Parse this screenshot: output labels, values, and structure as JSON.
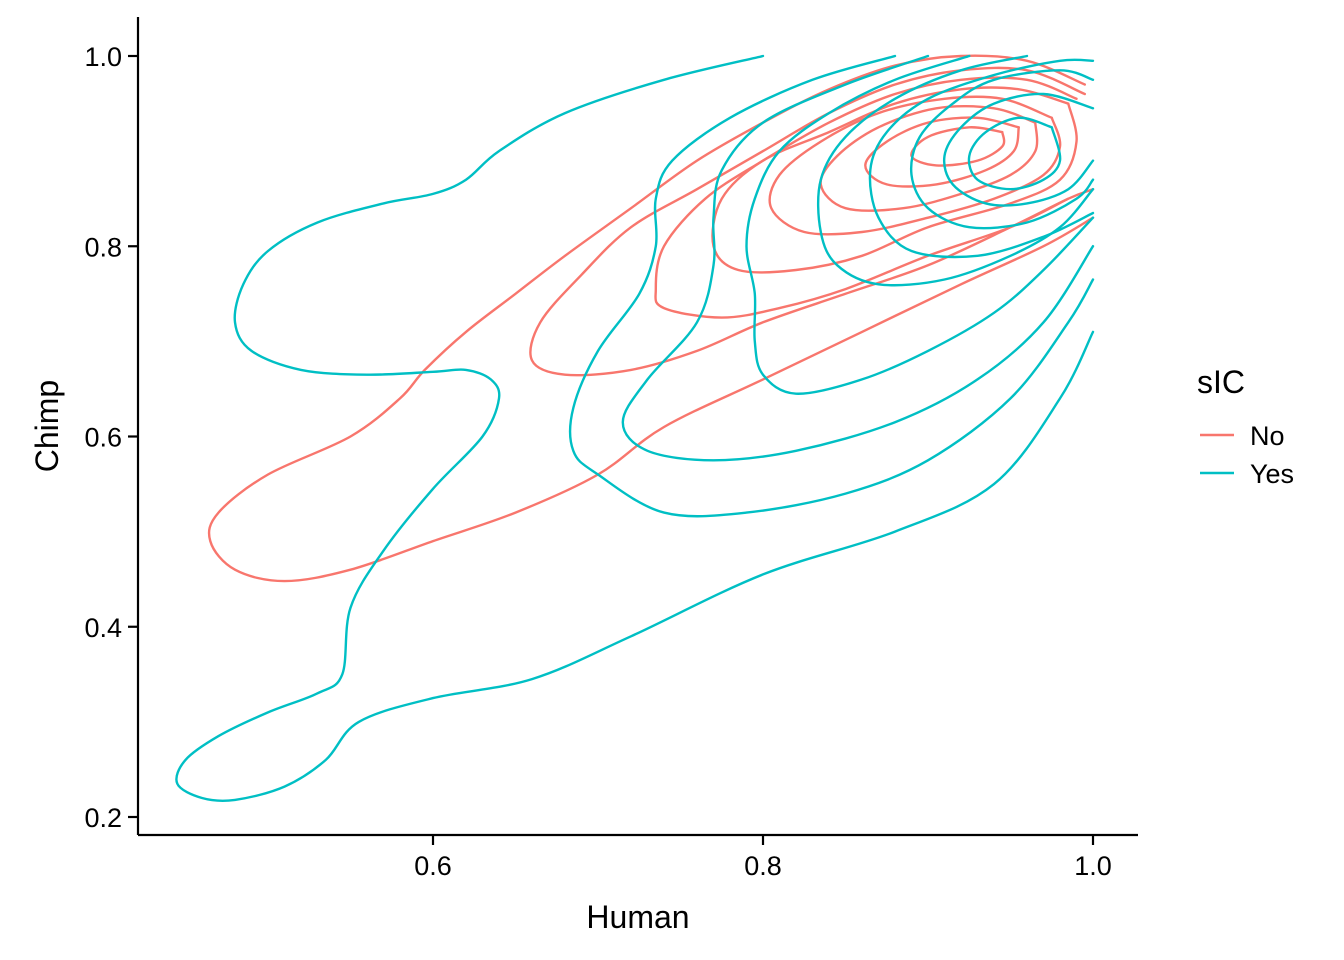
{
  "chart_data": {
    "type": "density_contour",
    "xlabel": "Human",
    "ylabel": "Chimp",
    "xlim": [
      0.43,
      1.03
    ],
    "ylim": [
      0.185,
      1.04
    ],
    "xticks": [
      0.6,
      0.8,
      1.0
    ],
    "xtick_labels": [
      "0.6",
      "0.8",
      "1.0"
    ],
    "yticks": [
      0.2,
      0.4,
      0.6,
      0.8,
      1.0
    ],
    "ytick_labels": [
      "0.2",
      "0.4",
      "0.6",
      "0.8",
      "1.0"
    ],
    "grid": false,
    "legend": {
      "title": "sIC",
      "position": "right",
      "entries": [
        {
          "label": "No",
          "color": "#F8766D"
        },
        {
          "label": "Yes",
          "color": "#00BFC4"
        }
      ]
    },
    "series": [
      {
        "name": "No",
        "color": "#F8766D",
        "contours": [
          [
            [
              0.995,
              0.97
            ],
            [
              0.96,
              0.995
            ],
            [
              0.92,
              1.0
            ],
            [
              0.88,
              0.99
            ],
            [
              0.84,
              0.965
            ],
            [
              0.8,
              0.93
            ],
            [
              0.76,
              0.89
            ],
            [
              0.72,
              0.84
            ],
            [
              0.68,
              0.79
            ],
            [
              0.65,
              0.75
            ],
            [
              0.62,
              0.71
            ],
            [
              0.595,
              0.67
            ],
            [
              0.58,
              0.64
            ],
            [
              0.55,
              0.6
            ],
            [
              0.5,
              0.56
            ],
            [
              0.47,
              0.52
            ],
            [
              0.465,
              0.49
            ],
            [
              0.48,
              0.46
            ],
            [
              0.51,
              0.448
            ],
            [
              0.55,
              0.46
            ],
            [
              0.6,
              0.49
            ],
            [
              0.65,
              0.52
            ],
            [
              0.7,
              0.56
            ],
            [
              0.74,
              0.61
            ],
            [
              0.8,
              0.66
            ],
            [
              0.86,
              0.71
            ],
            [
              0.92,
              0.76
            ],
            [
              0.97,
              0.8
            ],
            [
              1.0,
              0.83
            ]
          ],
          [
            [
              0.995,
              0.96
            ],
            [
              0.96,
              0.985
            ],
            [
              0.92,
              0.985
            ],
            [
              0.88,
              0.97
            ],
            [
              0.84,
              0.94
            ],
            [
              0.8,
              0.9
            ],
            [
              0.76,
              0.86
            ],
            [
              0.72,
              0.82
            ],
            [
              0.69,
              0.77
            ],
            [
              0.665,
              0.72
            ],
            [
              0.66,
              0.68
            ],
            [
              0.68,
              0.665
            ],
            [
              0.72,
              0.67
            ],
            [
              0.76,
              0.69
            ],
            [
              0.8,
              0.72
            ],
            [
              0.85,
              0.75
            ],
            [
              0.9,
              0.78
            ],
            [
              0.95,
              0.82
            ],
            [
              0.985,
              0.85
            ],
            [
              1.0,
              0.86
            ]
          ],
          [
            [
              0.99,
              0.955
            ],
            [
              0.96,
              0.975
            ],
            [
              0.92,
              0.975
            ],
            [
              0.88,
              0.96
            ],
            [
              0.84,
              0.93
            ],
            [
              0.8,
              0.89
            ],
            [
              0.765,
              0.85
            ],
            [
              0.74,
              0.8
            ],
            [
              0.735,
              0.755
            ],
            [
              0.74,
              0.735
            ],
            [
              0.775,
              0.725
            ],
            [
              0.81,
              0.735
            ],
            [
              0.85,
              0.755
            ],
            [
              0.9,
              0.79
            ],
            [
              0.95,
              0.82
            ],
            [
              0.985,
              0.85
            ]
          ],
          [
            [
              0.985,
              0.95
            ],
            [
              0.955,
              0.965
            ],
            [
              0.92,
              0.965
            ],
            [
              0.88,
              0.95
            ],
            [
              0.84,
              0.92
            ],
            [
              0.8,
              0.89
            ],
            [
              0.775,
              0.85
            ],
            [
              0.77,
              0.8
            ],
            [
              0.785,
              0.775
            ],
            [
              0.82,
              0.775
            ],
            [
              0.86,
              0.79
            ],
            [
              0.9,
              0.82
            ],
            [
              0.95,
              0.845
            ],
            [
              0.98,
              0.87
            ],
            [
              0.99,
              0.91
            ],
            [
              0.985,
              0.95
            ]
          ],
          [
            [
              0.975,
              0.935
            ],
            [
              0.945,
              0.955
            ],
            [
              0.91,
              0.955
            ],
            [
              0.87,
              0.94
            ],
            [
              0.835,
              0.91
            ],
            [
              0.81,
              0.875
            ],
            [
              0.805,
              0.84
            ],
            [
              0.825,
              0.815
            ],
            [
              0.86,
              0.815
            ],
            [
              0.9,
              0.83
            ],
            [
              0.94,
              0.85
            ],
            [
              0.97,
              0.875
            ],
            [
              0.98,
              0.905
            ],
            [
              0.975,
              0.935
            ]
          ],
          [
            [
              0.965,
              0.93
            ],
            [
              0.94,
              0.945
            ],
            [
              0.905,
              0.945
            ],
            [
              0.87,
              0.925
            ],
            [
              0.845,
              0.895
            ],
            [
              0.835,
              0.865
            ],
            [
              0.85,
              0.84
            ],
            [
              0.885,
              0.84
            ],
            [
              0.92,
              0.855
            ],
            [
              0.95,
              0.875
            ],
            [
              0.965,
              0.9
            ],
            [
              0.965,
              0.93
            ]
          ],
          [
            [
              0.955,
              0.925
            ],
            [
              0.93,
              0.935
            ],
            [
              0.9,
              0.93
            ],
            [
              0.875,
              0.91
            ],
            [
              0.862,
              0.885
            ],
            [
              0.875,
              0.865
            ],
            [
              0.905,
              0.865
            ],
            [
              0.935,
              0.88
            ],
            [
              0.952,
              0.9
            ],
            [
              0.955,
              0.925
            ]
          ],
          [
            [
              0.945,
              0.92
            ],
            [
              0.925,
              0.925
            ],
            [
              0.9,
              0.915
            ],
            [
              0.89,
              0.895
            ],
            [
              0.905,
              0.885
            ],
            [
              0.93,
              0.89
            ],
            [
              0.945,
              0.905
            ],
            [
              0.945,
              0.92
            ]
          ]
        ]
      },
      {
        "name": "Yes",
        "color": "#00BFC4",
        "contours": [
          [
            [
              0.8,
              1.0
            ],
            [
              0.74,
              0.975
            ],
            [
              0.68,
              0.94
            ],
            [
              0.64,
              0.9
            ],
            [
              0.62,
              0.87
            ],
            [
              0.6,
              0.855
            ],
            [
              0.57,
              0.845
            ],
            [
              0.53,
              0.825
            ],
            [
              0.5,
              0.795
            ],
            [
              0.485,
              0.76
            ],
            [
              0.48,
              0.72
            ],
            [
              0.49,
              0.69
            ],
            [
              0.52,
              0.67
            ],
            [
              0.56,
              0.665
            ],
            [
              0.6,
              0.668
            ],
            [
              0.62,
              0.67
            ],
            [
              0.635,
              0.66
            ],
            [
              0.64,
              0.64
            ],
            [
              0.63,
              0.6
            ],
            [
              0.6,
              0.545
            ],
            [
              0.57,
              0.48
            ],
            [
              0.55,
              0.42
            ],
            [
              0.545,
              0.35
            ],
            [
              0.53,
              0.33
            ],
            [
              0.5,
              0.31
            ],
            [
              0.47,
              0.285
            ],
            [
              0.45,
              0.26
            ],
            [
              0.445,
              0.235
            ],
            [
              0.46,
              0.22
            ],
            [
              0.48,
              0.218
            ],
            [
              0.51,
              0.232
            ],
            [
              0.535,
              0.26
            ],
            [
              0.555,
              0.3
            ],
            [
              0.6,
              0.325
            ],
            [
              0.66,
              0.345
            ],
            [
              0.72,
              0.39
            ],
            [
              0.8,
              0.455
            ],
            [
              0.88,
              0.5
            ],
            [
              0.94,
              0.55
            ],
            [
              0.98,
              0.64
            ],
            [
              1.0,
              0.71
            ]
          ],
          [
            [
              0.88,
              1.0
            ],
            [
              0.83,
              0.975
            ],
            [
              0.78,
              0.935
            ],
            [
              0.745,
              0.89
            ],
            [
              0.735,
              0.85
            ],
            [
              0.735,
              0.8
            ],
            [
              0.725,
              0.75
            ],
            [
              0.7,
              0.69
            ],
            [
              0.685,
              0.63
            ],
            [
              0.685,
              0.585
            ],
            [
              0.7,
              0.56
            ],
            [
              0.74,
              0.52
            ],
            [
              0.79,
              0.52
            ],
            [
              0.85,
              0.54
            ],
            [
              0.9,
              0.575
            ],
            [
              0.95,
              0.64
            ],
            [
              0.985,
              0.72
            ],
            [
              1.0,
              0.765
            ]
          ],
          [
            [
              0.9,
              1.0
            ],
            [
              0.85,
              0.97
            ],
            [
              0.8,
              0.93
            ],
            [
              0.775,
              0.88
            ],
            [
              0.77,
              0.83
            ],
            [
              0.77,
              0.78
            ],
            [
              0.76,
              0.72
            ],
            [
              0.73,
              0.66
            ],
            [
              0.715,
              0.615
            ],
            [
              0.73,
              0.585
            ],
            [
              0.77,
              0.575
            ],
            [
              0.82,
              0.585
            ],
            [
              0.88,
              0.615
            ],
            [
              0.93,
              0.66
            ],
            [
              0.97,
              0.72
            ],
            [
              1.0,
              0.8
            ]
          ],
          [
            [
              0.925,
              1.0
            ],
            [
              0.88,
              0.975
            ],
            [
              0.84,
              0.94
            ],
            [
              0.81,
              0.9
            ],
            [
              0.795,
              0.85
            ],
            [
              0.79,
              0.8
            ],
            [
              0.795,
              0.75
            ],
            [
              0.795,
              0.7
            ],
            [
              0.8,
              0.665
            ],
            [
              0.82,
              0.645
            ],
            [
              0.86,
              0.66
            ],
            [
              0.9,
              0.69
            ],
            [
              0.94,
              0.73
            ],
            [
              0.97,
              0.775
            ],
            [
              1.0,
              0.83
            ]
          ],
          [
            [
              0.96,
              1.0
            ],
            [
              0.92,
              0.985
            ],
            [
              0.88,
              0.955
            ],
            [
              0.85,
              0.915
            ],
            [
              0.835,
              0.87
            ],
            [
              0.835,
              0.815
            ],
            [
              0.845,
              0.78
            ],
            [
              0.87,
              0.76
            ],
            [
              0.91,
              0.765
            ],
            [
              0.95,
              0.79
            ],
            [
              0.98,
              0.82
            ],
            [
              1.0,
              0.86
            ]
          ],
          [
            [
              1.0,
              0.995
            ],
            [
              0.98,
              0.995
            ],
            [
              0.94,
              0.98
            ],
            [
              0.9,
              0.955
            ],
            [
              0.875,
              0.92
            ],
            [
              0.865,
              0.88
            ],
            [
              0.87,
              0.83
            ],
            [
              0.89,
              0.795
            ],
            [
              0.93,
              0.79
            ],
            [
              0.97,
              0.81
            ],
            [
              1.0,
              0.835
            ]
          ],
          [
            [
              1.0,
              0.975
            ],
            [
              0.98,
              0.985
            ],
            [
              0.94,
              0.975
            ],
            [
              0.915,
              0.95
            ],
            [
              0.895,
              0.915
            ],
            [
              0.89,
              0.875
            ],
            [
              0.9,
              0.84
            ],
            [
              0.925,
              0.82
            ],
            [
              0.96,
              0.825
            ],
            [
              0.99,
              0.85
            ],
            [
              1.0,
              0.87
            ]
          ],
          [
            [
              1.0,
              0.945
            ],
            [
              0.97,
              0.96
            ],
            [
              0.94,
              0.95
            ],
            [
              0.92,
              0.925
            ],
            [
              0.91,
              0.895
            ],
            [
              0.915,
              0.865
            ],
            [
              0.935,
              0.845
            ],
            [
              0.96,
              0.845
            ],
            [
              0.985,
              0.86
            ],
            [
              1.0,
              0.89
            ]
          ],
          [
            [
              0.975,
              0.925
            ],
            [
              0.955,
              0.935
            ],
            [
              0.935,
              0.92
            ],
            [
              0.925,
              0.895
            ],
            [
              0.93,
              0.87
            ],
            [
              0.95,
              0.86
            ],
            [
              0.97,
              0.87
            ],
            [
              0.98,
              0.89
            ],
            [
              0.975,
              0.925
            ]
          ]
        ]
      }
    ]
  }
}
